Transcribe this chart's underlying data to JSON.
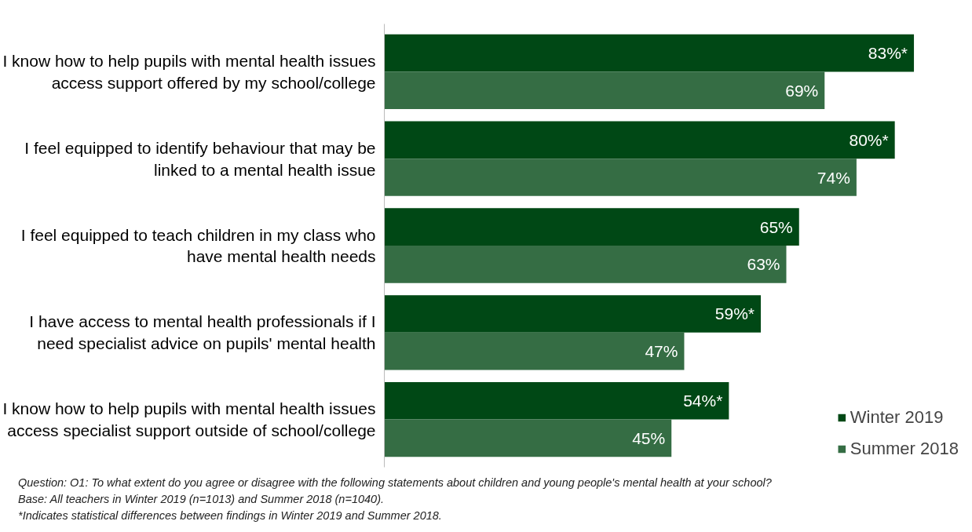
{
  "chart_data": {
    "type": "bar",
    "orientation": "horizontal",
    "categories": [
      "I know how to help pupils with mental health issues access support offered by my school/college",
      "I feel equipped to identify behaviour that may be linked to a mental health issue",
      "I feel equipped to teach children in my class who have mental health needs",
      "I have access to mental health professionals if I need specialist advice on pupils' mental health",
      "I know how to help pupils with mental health issues access specialist support outside of school/college"
    ],
    "series": [
      {
        "name": "Winter 2019",
        "color": "#004815",
        "values": [
          83,
          80,
          65,
          59,
          54
        ],
        "value_labels": [
          "83%*",
          "80%*",
          "65%",
          "59%*",
          "54%*"
        ]
      },
      {
        "name": "Summer 2018",
        "color": "#356d44",
        "values": [
          69,
          74,
          63,
          47,
          45
        ],
        "value_labels": [
          "69%",
          "74%",
          "63%",
          "47%",
          "45%"
        ]
      }
    ],
    "legend": "bottom right",
    "grid": false,
    "annotations": [
      "Question: O1:  To what extent do you agree or disagree with the following statements about children and young people's mental health at your school?",
      "Base: All teachers in Winter 2019 (n=1013) and Summer 2018 (n=1040).",
      "*Indicates statistical differences between findings in Winter 2019 and Summer 2018."
    ]
  }
}
